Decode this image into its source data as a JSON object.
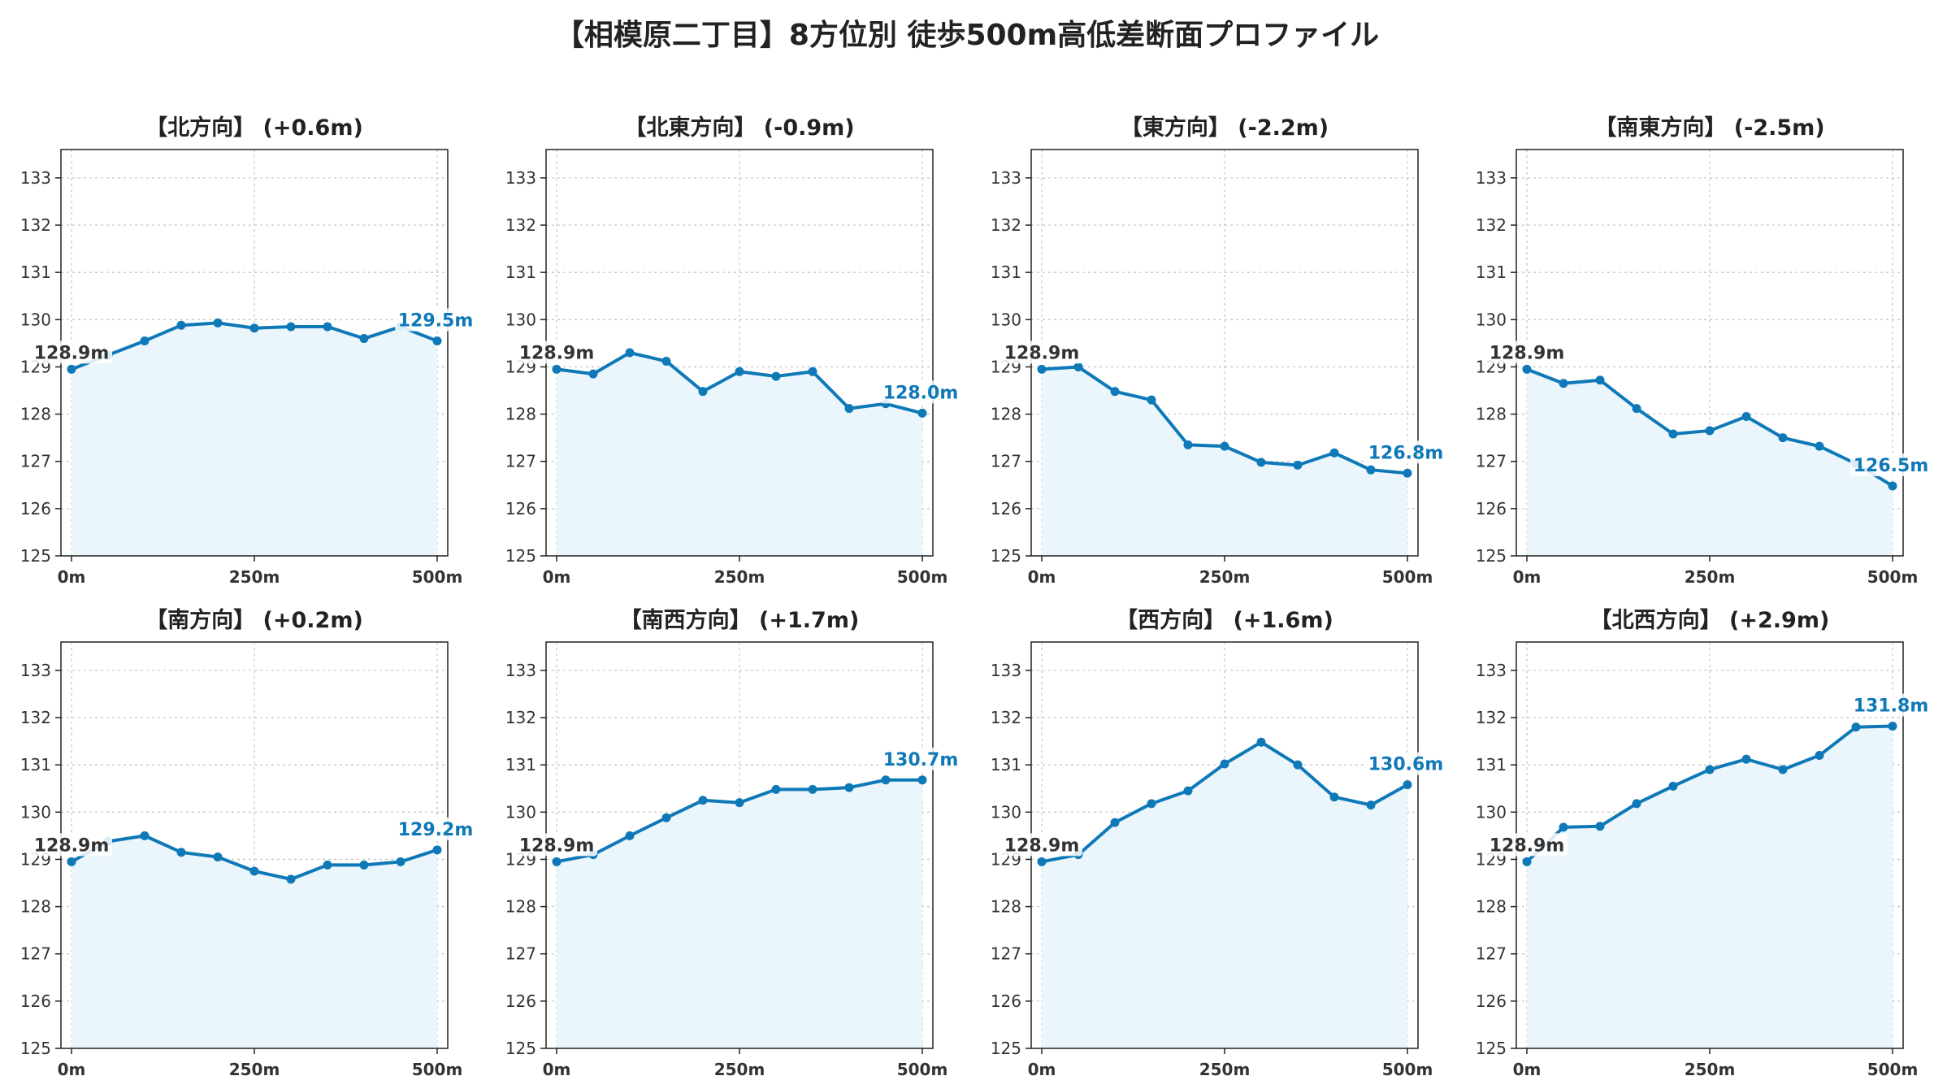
{
  "title": "【相模原二丁目】8方位別 徒歩500m高低差断面プロファイル",
  "colors": {
    "line": "#0f79b8",
    "fill": "#eaf6fc",
    "grid": "#c8c8c8",
    "axis": "#222222",
    "start_label": "#333333",
    "end_label": "#0f79b8"
  },
  "chart_data": [
    {
      "type": "area",
      "title": "【北方向】 (+0.6m)",
      "x": [
        0,
        50,
        100,
        150,
        200,
        250,
        300,
        350,
        400,
        450,
        500
      ],
      "xtick_values": [
        0,
        250,
        500
      ],
      "xtick_labels": [
        "0m",
        "250m",
        "500m"
      ],
      "ylim": [
        125,
        133.6
      ],
      "yticks": [
        125,
        126,
        127,
        128,
        129,
        130,
        131,
        132,
        133
      ],
      "values": [
        128.95,
        129.25,
        129.55,
        129.88,
        129.93,
        129.82,
        129.85,
        129.85,
        129.6,
        129.85,
        129.55
      ],
      "start_label": "128.9m",
      "end_label": "129.5m",
      "grid": true
    },
    {
      "type": "area",
      "title": "【北東方向】 (-0.9m)",
      "x": [
        0,
        50,
        100,
        150,
        200,
        250,
        300,
        350,
        400,
        450,
        500
      ],
      "xtick_values": [
        0,
        250,
        500
      ],
      "xtick_labels": [
        "0m",
        "250m",
        "500m"
      ],
      "ylim": [
        125,
        133.6
      ],
      "yticks": [
        125,
        126,
        127,
        128,
        129,
        130,
        131,
        132,
        133
      ],
      "values": [
        128.95,
        128.85,
        129.3,
        129.12,
        128.48,
        128.9,
        128.8,
        128.9,
        128.12,
        128.22,
        128.02
      ],
      "start_label": "128.9m",
      "end_label": "128.0m",
      "grid": true
    },
    {
      "type": "area",
      "title": "【東方向】 (-2.2m)",
      "x": [
        0,
        50,
        100,
        150,
        200,
        250,
        300,
        350,
        400,
        450,
        500
      ],
      "xtick_values": [
        0,
        250,
        500
      ],
      "xtick_labels": [
        "0m",
        "250m",
        "500m"
      ],
      "ylim": [
        125,
        133.6
      ],
      "yticks": [
        125,
        126,
        127,
        128,
        129,
        130,
        131,
        132,
        133
      ],
      "values": [
        128.95,
        129.0,
        128.48,
        128.3,
        127.35,
        127.32,
        126.98,
        126.92,
        127.18,
        126.82,
        126.75
      ],
      "start_label": "128.9m",
      "end_label": "126.8m",
      "grid": true
    },
    {
      "type": "area",
      "title": "【南東方向】 (-2.5m)",
      "x": [
        0,
        50,
        100,
        150,
        200,
        250,
        300,
        350,
        400,
        450,
        500
      ],
      "xtick_values": [
        0,
        250,
        500
      ],
      "xtick_labels": [
        "0m",
        "250m",
        "500m"
      ],
      "ylim": [
        125,
        133.6
      ],
      "yticks": [
        125,
        126,
        127,
        128,
        129,
        130,
        131,
        132,
        133
      ],
      "values": [
        128.95,
        128.65,
        128.72,
        128.12,
        127.58,
        127.65,
        127.95,
        127.5,
        127.32,
        126.95,
        126.48
      ],
      "start_label": "128.9m",
      "end_label": "126.5m",
      "grid": true
    },
    {
      "type": "area",
      "title": "【南方向】 (+0.2m)",
      "x": [
        0,
        50,
        100,
        150,
        200,
        250,
        300,
        350,
        400,
        450,
        500
      ],
      "xtick_values": [
        0,
        250,
        500
      ],
      "xtick_labels": [
        "0m",
        "250m",
        "500m"
      ],
      "ylim": [
        125,
        133.6
      ],
      "yticks": [
        125,
        126,
        127,
        128,
        129,
        130,
        131,
        132,
        133
      ],
      "values": [
        128.95,
        129.38,
        129.5,
        129.15,
        129.05,
        128.75,
        128.58,
        128.88,
        128.88,
        128.95,
        129.2
      ],
      "start_label": "128.9m",
      "end_label": "129.2m",
      "grid": true
    },
    {
      "type": "area",
      "title": "【南西方向】 (+1.7m)",
      "x": [
        0,
        50,
        100,
        150,
        200,
        250,
        300,
        350,
        400,
        450,
        500
      ],
      "xtick_values": [
        0,
        250,
        500
      ],
      "xtick_labels": [
        "0m",
        "250m",
        "500m"
      ],
      "ylim": [
        125,
        133.6
      ],
      "yticks": [
        125,
        126,
        127,
        128,
        129,
        130,
        131,
        132,
        133
      ],
      "values": [
        128.95,
        129.1,
        129.5,
        129.88,
        130.25,
        130.2,
        130.48,
        130.48,
        130.52,
        130.68,
        130.68
      ],
      "start_label": "128.9m",
      "end_label": "130.7m",
      "grid": true
    },
    {
      "type": "area",
      "title": "【西方向】 (+1.6m)",
      "x": [
        0,
        50,
        100,
        150,
        200,
        250,
        300,
        350,
        400,
        450,
        500
      ],
      "xtick_values": [
        0,
        250,
        500
      ],
      "xtick_labels": [
        "0m",
        "250m",
        "500m"
      ],
      "ylim": [
        125,
        133.6
      ],
      "yticks": [
        125,
        126,
        127,
        128,
        129,
        130,
        131,
        132,
        133
      ],
      "values": [
        128.95,
        129.1,
        129.78,
        130.18,
        130.45,
        131.02,
        131.48,
        131.0,
        130.32,
        130.15,
        130.58
      ],
      "start_label": "128.9m",
      "end_label": "130.6m",
      "grid": true
    },
    {
      "type": "area",
      "title": "【北西方向】 (+2.9m)",
      "x": [
        0,
        50,
        100,
        150,
        200,
        250,
        300,
        350,
        400,
        450,
        500
      ],
      "xtick_values": [
        0,
        250,
        500
      ],
      "xtick_labels": [
        "0m",
        "250m",
        "500m"
      ],
      "ylim": [
        125,
        133.6
      ],
      "yticks": [
        125,
        126,
        127,
        128,
        129,
        130,
        131,
        132,
        133
      ],
      "values": [
        128.95,
        129.68,
        129.7,
        130.18,
        130.55,
        130.9,
        131.12,
        130.9,
        131.2,
        131.8,
        131.82
      ],
      "start_label": "128.9m",
      "end_label": "131.8m",
      "grid": true
    }
  ]
}
